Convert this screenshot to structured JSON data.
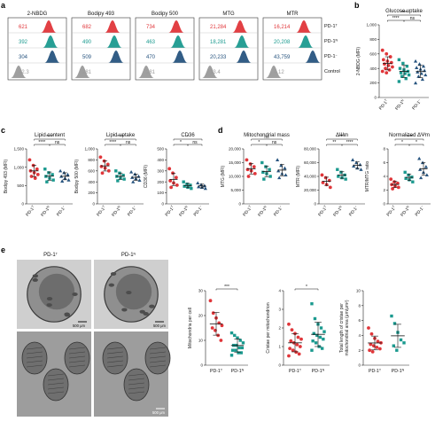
{
  "panel_labels": {
    "a": "a",
    "b": "b",
    "c": "c",
    "d": "d",
    "e": "e"
  },
  "colors": {
    "PD-1T": "#e0363a",
    "PD-1N": "#1b9a8f",
    "PD-1-": "#27547f",
    "Control": "#9a9a9a"
  },
  "panel_a": {
    "columns": [
      "2-NBDG",
      "Bodipy 493",
      "Bodipy 500",
      "MTG",
      "MTR"
    ],
    "rows": [
      {
        "label": "PD-1T",
        "values": [
          "621",
          "682",
          "734",
          "21,284",
          "16,214"
        ],
        "color": "#e0363a"
      },
      {
        "label": "PD-1N",
        "values": [
          "392",
          "490",
          "463",
          "18,281",
          "20,208"
        ],
        "color": "#1b9a8f"
      },
      {
        "label": "PD-1−",
        "values": [
          "304",
          "509",
          "470",
          "20,233",
          "43,759"
        ],
        "color": "#27547f"
      },
      {
        "label": "Control",
        "values": [
          "42.3",
          "281",
          "281",
          "13.4",
          "4.12"
        ],
        "color": "#9a9a9a"
      }
    ]
  },
  "panel_b": {
    "title": "Glucose uptake",
    "ylabel": "2-NBDG (MFI)",
    "yticks": [
      "1,000",
      "800",
      "600",
      "400",
      "200",
      "0"
    ],
    "xticks": [
      "PD-1T",
      "PD-1N",
      "PD-1−"
    ],
    "sig": [
      "****",
      "****",
      "ns"
    ]
  },
  "panel_c": [
    {
      "title": "Lipid content",
      "ylabel": "Bodipy 493 (MFI)",
      "yticks": [
        "1,500",
        "1,000",
        "500",
        "0"
      ],
      "sig": [
        "****",
        "****",
        "ns"
      ]
    },
    {
      "title": "Lipid uptake",
      "ylabel": "Bodipy 500 (MFI)",
      "yticks": [
        "1,000",
        "800",
        "600",
        "400",
        "200",
        "0"
      ],
      "sig": [
        "****",
        "****",
        "ns"
      ]
    },
    {
      "title": "CD36",
      "ylabel": "CD36 (MFI)",
      "yticks": [
        "500",
        "400",
        "300",
        "200",
        "100",
        "0"
      ],
      "sig": [
        "*",
        "*",
        "ns"
      ]
    }
  ],
  "panel_d": [
    {
      "title": "Mitochondrial mass",
      "ylabel": "MTG (MFI)",
      "yticks": [
        "20,000",
        "15,000",
        "10,000",
        "5,000",
        "0"
      ],
      "sig": [
        "ns",
        "*",
        "ns"
      ]
    },
    {
      "title": "ΔΨm",
      "ylabel": "MTR (MFI)",
      "yticks": [
        "80,000",
        "60,000",
        "40,000",
        "20,000",
        "0"
      ],
      "sig": [
        "****",
        "**",
        "****"
      ]
    },
    {
      "title": "Normalized ΔΨm",
      "ylabel": "MTR/MTG ratio",
      "yticks": [
        "8",
        "6",
        "4",
        "2",
        "0"
      ],
      "sig": [
        "****",
        "*",
        "*"
      ]
    }
  ],
  "xticks3": [
    "PD-1T",
    "PD-1N",
    "PD-1−"
  ],
  "panel_e": {
    "img_titles": [
      "PD-1T",
      "PD-1N"
    ],
    "scale_top": "500 μm",
    "scale_bottom": "500 μm",
    "plots": [
      {
        "ylabel": "Mitochondria per cell",
        "yticks": [
          "30",
          "20",
          "10",
          "0"
        ],
        "sig": "***",
        "xticks": [
          "PD-1T",
          "PD-1N"
        ]
      },
      {
        "ylabel": "Cristae per mitochondrion",
        "yticks": [
          "4",
          "3",
          "2",
          "1",
          "0"
        ],
        "sig": "*",
        "xticks": [
          "PD-1T",
          "PD-1N"
        ]
      },
      {
        "ylabel": "Total length of cristae per mitochondrial area (μm/μm²)",
        "yticks": [
          "10",
          "8",
          "6",
          "4",
          "2",
          "0"
        ],
        "sig": "",
        "xticks": [
          "PD-1T",
          "PD-1N"
        ]
      }
    ]
  },
  "chart_data": [
    {
      "type": "scatter",
      "panel": "b",
      "title": "Glucose uptake",
      "ylabel": "2-NBDG (MFI)",
      "ylim": [
        0,
        1000
      ],
      "categories": [
        "PD-1T",
        "PD-1N",
        "PD-1−"
      ],
      "series": [
        {
          "name": "PD-1T",
          "values": [
            650,
            600,
            560,
            520,
            500,
            480,
            460,
            440,
            420,
            400,
            380,
            360,
            340
          ]
        },
        {
          "name": "PD-1N",
          "values": [
            520,
            470,
            430,
            400,
            380,
            360,
            340,
            330,
            310,
            290,
            260,
            220
          ]
        },
        {
          "name": "PD-1−",
          "values": [
            500,
            460,
            430,
            410,
            390,
            370,
            350,
            330,
            310,
            290,
            250,
            200
          ]
        }
      ]
    },
    {
      "type": "scatter",
      "panel": "c1",
      "title": "Lipid content",
      "ylabel": "Bodipy 493 (MFI)",
      "ylim": [
        0,
        1500
      ],
      "series": [
        {
          "name": "PD-1T",
          "values": [
            1200,
            1050,
            950,
            900,
            850,
            800,
            750,
            700
          ]
        },
        {
          "name": "PD-1N",
          "values": [
            950,
            850,
            800,
            750,
            700,
            650,
            600
          ]
        },
        {
          "name": "PD-1−",
          "values": [
            900,
            850,
            800,
            750,
            700,
            650,
            620
          ]
        }
      ]
    },
    {
      "type": "scatter",
      "panel": "c2",
      "title": "Lipid uptake",
      "ylabel": "Bodipy 500 (MFI)",
      "ylim": [
        0,
        1000
      ],
      "series": [
        {
          "name": "PD-1T",
          "values": [
            850,
            780,
            720,
            680,
            650,
            600,
            560
          ]
        },
        {
          "name": "PD-1N",
          "values": [
            600,
            560,
            520,
            500,
            470,
            450,
            420
          ]
        },
        {
          "name": "PD-1−",
          "values": [
            580,
            540,
            500,
            480,
            460,
            430,
            400
          ]
        }
      ]
    },
    {
      "type": "scatter",
      "panel": "c3",
      "title": "CD36",
      "ylabel": "CD36 (MFI)",
      "ylim": [
        0,
        500
      ],
      "series": [
        {
          "name": "PD-1T",
          "values": [
            320,
            280,
            240,
            210,
            190,
            170,
            150
          ]
        },
        {
          "name": "PD-1N",
          "values": [
            200,
            180,
            170,
            160,
            150,
            140
          ]
        },
        {
          "name": "PD-1−",
          "values": [
            190,
            175,
            165,
            155,
            150,
            140
          ]
        }
      ]
    },
    {
      "type": "scatter",
      "panel": "d1",
      "title": "Mitochondrial mass",
      "ylabel": "MTG (MFI)",
      "ylim": [
        0,
        20000
      ],
      "series": [
        {
          "name": "PD-1T",
          "values": [
            16000,
            14500,
            13500,
            12500,
            12000,
            11000,
            10000
          ]
        },
        {
          "name": "PD-1N",
          "values": [
            15000,
            13500,
            12500,
            11500,
            11000,
            10000,
            9000
          ]
        },
        {
          "name": "PD-1−",
          "values": [
            16000,
            14000,
            13000,
            12000,
            11000,
            10500,
            9500
          ]
        }
      ]
    },
    {
      "type": "scatter",
      "panel": "d2",
      "title": "ΔΨm",
      "ylabel": "MTR (MFI)",
      "ylim": [
        0,
        80000
      ],
      "series": [
        {
          "name": "PD-1T",
          "values": [
            42000,
            38000,
            34000,
            31000,
            28000,
            24000
          ]
        },
        {
          "name": "PD-1N",
          "values": [
            50000,
            46000,
            42000,
            40000,
            38000,
            36000
          ]
        },
        {
          "name": "PD-1−",
          "values": [
            64000,
            60000,
            57000,
            55000,
            52000,
            50000
          ]
        }
      ]
    },
    {
      "type": "scatter",
      "panel": "d3",
      "title": "Normalized ΔΨm",
      "ylabel": "MTR/MTG ratio",
      "ylim": [
        0,
        8
      ],
      "series": [
        {
          "name": "PD-1T",
          "values": [
            3.6,
            3.2,
            3.0,
            2.8,
            2.6,
            2.4,
            2.2
          ]
        },
        {
          "name": "PD-1N",
          "values": [
            4.6,
            4.2,
            3.9,
            3.7,
            3.5,
            3.2
          ]
        },
        {
          "name": "PD-1−",
          "values": [
            6.6,
            6.0,
            5.4,
            5.0,
            4.6,
            4.2,
            3.8
          ]
        }
      ]
    },
    {
      "type": "scatter",
      "panel": "e1",
      "ylabel": "Mitochondria per cell",
      "ylim": [
        0,
        30
      ],
      "series": [
        {
          "name": "PD-1T",
          "values": [
            26,
            21,
            19,
            17,
            16,
            15,
            14,
            12,
            10
          ]
        },
        {
          "name": "PD-1N",
          "values": [
            13,
            12,
            11,
            10,
            9,
            8,
            8,
            7,
            7,
            6,
            6,
            5,
            5,
            4
          ]
        }
      ]
    },
    {
      "type": "scatter",
      "panel": "e2",
      "ylabel": "Cristae per mitochondrion",
      "ylim": [
        0,
        4
      ],
      "series": [
        {
          "name": "PD-1T",
          "values": [
            2.2,
            1.9,
            1.7,
            1.5,
            1.4,
            1.3,
            1.2,
            1.1,
            1.0,
            0.9,
            0.8,
            0.7,
            0.6,
            0.5
          ]
        },
        {
          "name": "PD-1N",
          "values": [
            3.3,
            2.5,
            2.2,
            2.0,
            1.8,
            1.7,
            1.6,
            1.5,
            1.4,
            1.3,
            1.2,
            1.0,
            0.9,
            0.8
          ]
        }
      ]
    },
    {
      "type": "scatter",
      "panel": "e3",
      "ylabel": "Total length of cristae per mitochondrial area (μm/μm²)",
      "ylim": [
        0,
        10
      ],
      "series": [
        {
          "name": "PD-1T",
          "values": [
            5.0,
            4.2,
            3.6,
            3.2,
            3.0,
            2.8,
            2.6,
            2.4,
            2.2,
            2.0,
            1.8
          ]
        },
        {
          "name": "PD-1N",
          "values": [
            6.6,
            5.6,
            4.4,
            3.4,
            3.0,
            2.6,
            2.0
          ]
        }
      ]
    }
  ]
}
